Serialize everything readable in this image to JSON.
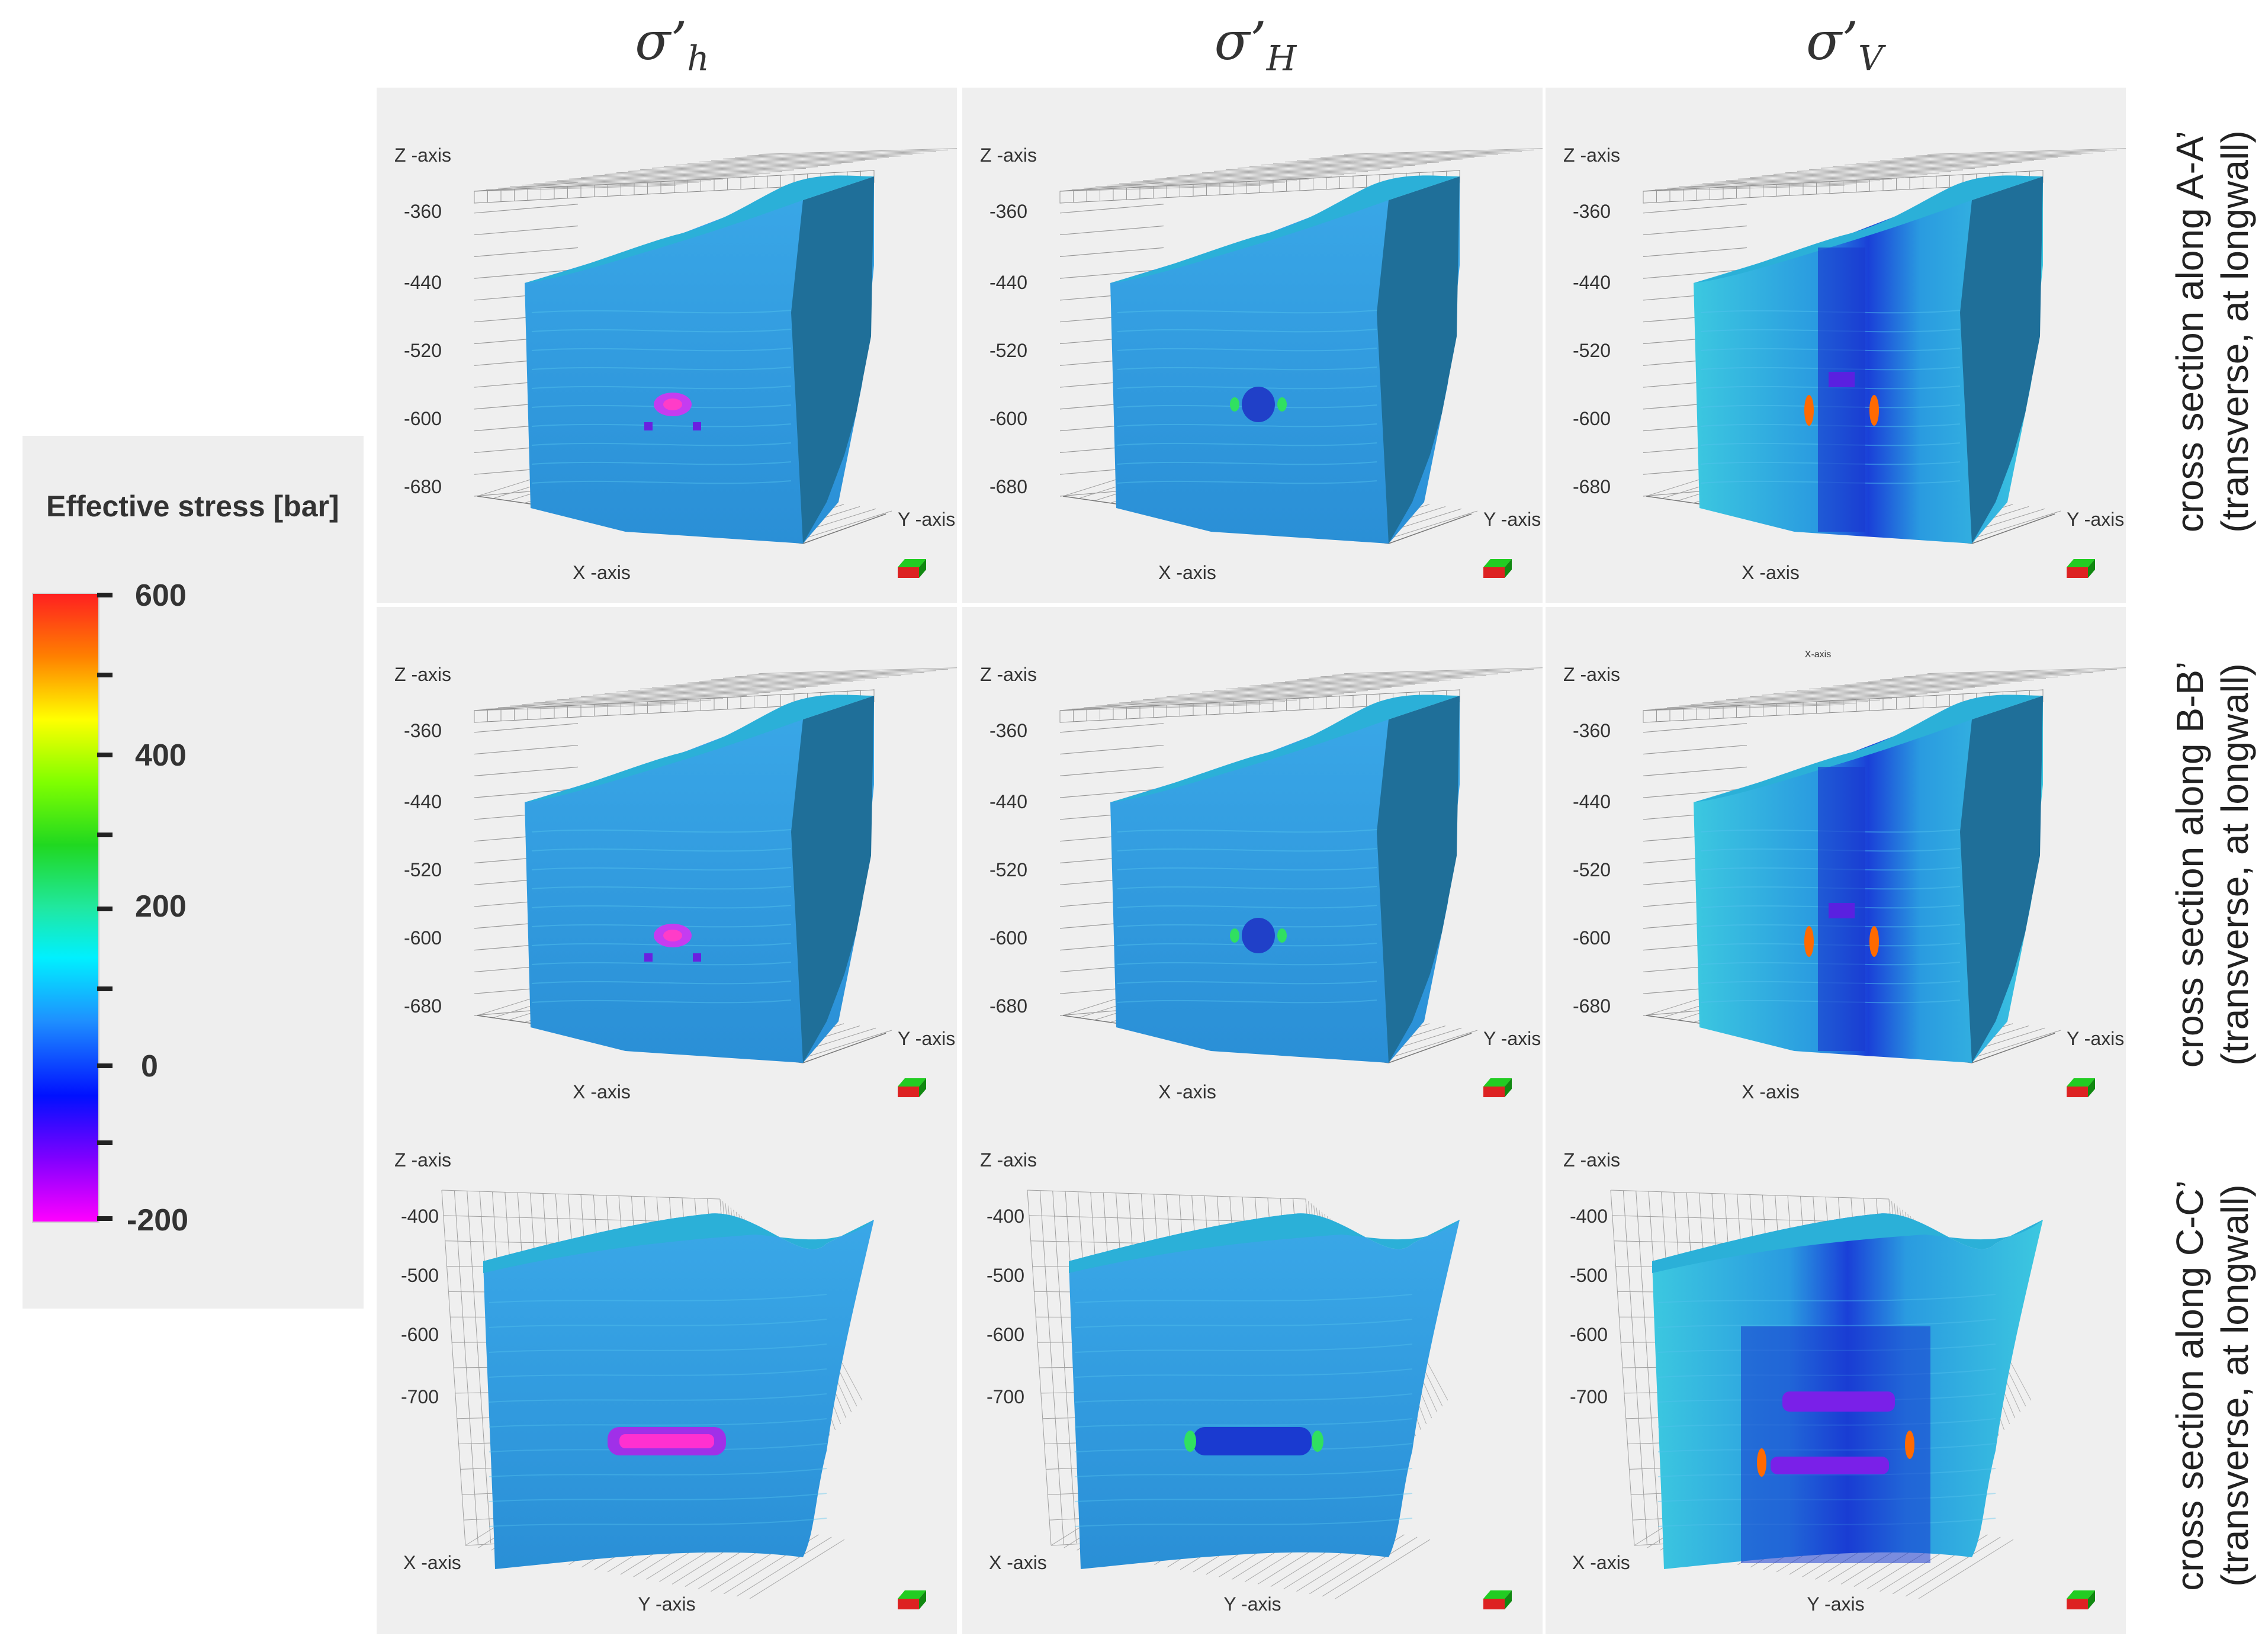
{
  "column_headers": [
    {
      "symbol": "σ’",
      "sub": "h"
    },
    {
      "symbol": "σ’",
      "sub": "H"
    },
    {
      "symbol": "σ’",
      "sub": "V"
    }
  ],
  "legend": {
    "title": "Effective stress [bar]",
    "ticks": [
      "600",
      "400",
      "200",
      "0",
      "-200"
    ],
    "colors": [
      "#ff2020",
      "#ffff00",
      "#20d820",
      "#00f0ff",
      "#1e90ff",
      "#0010ff",
      "#ff00ff"
    ]
  },
  "row_labels": [
    {
      "line1": "cross section along A-A’",
      "line2": "(transverse, at longwall)"
    },
    {
      "line1": "cross section along B-B’",
      "line2": "(transverse, at longwall)"
    },
    {
      "line1": "cross section along C-C’",
      "line2": "(transverse, at longwall)"
    }
  ],
  "axes": {
    "x": "X -axis",
    "y": "Y -axis",
    "z": "Z -axis"
  },
  "z_ticks_rows_1_2": [
    "-360",
    "-440",
    "-520",
    "-600",
    "-680"
  ],
  "z_ticks_row_3": [
    "-400",
    "-500",
    "-600",
    "-700"
  ],
  "stray_label": "X-axis",
  "panels": [
    {
      "row": 0,
      "col": 0,
      "variant": "h"
    },
    {
      "row": 0,
      "col": 1,
      "variant": "H"
    },
    {
      "row": 0,
      "col": 2,
      "variant": "V"
    },
    {
      "row": 1,
      "col": 0,
      "variant": "h"
    },
    {
      "row": 1,
      "col": 1,
      "variant": "H"
    },
    {
      "row": 1,
      "col": 2,
      "variant": "V"
    },
    {
      "row": 2,
      "col": 0,
      "variant": "h"
    },
    {
      "row": 2,
      "col": 1,
      "variant": "H"
    },
    {
      "row": 2,
      "col": 2,
      "variant": "V"
    }
  ]
}
